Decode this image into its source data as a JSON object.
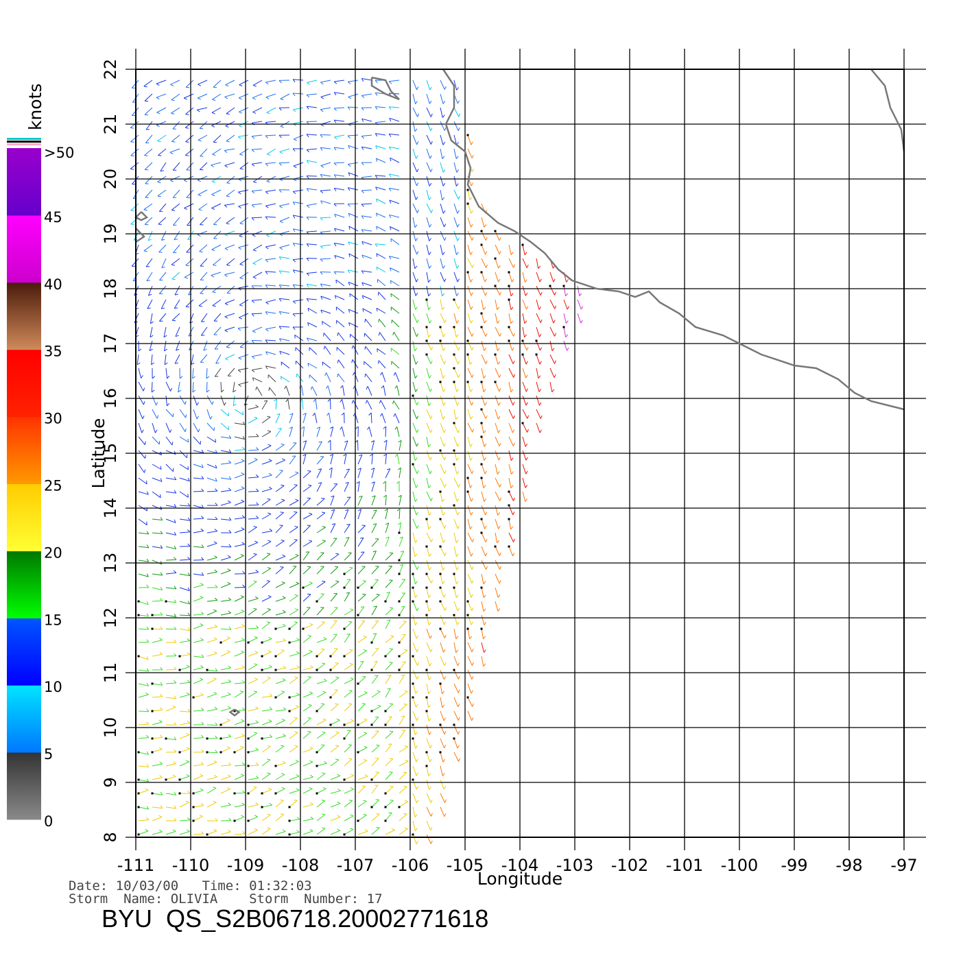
{
  "colorbar": {
    "unit_label": "knots",
    "labels": [
      "0",
      "5",
      "10",
      "15",
      "20",
      "25",
      "30",
      "35",
      "40",
      "45",
      ">50"
    ],
    "segments": [
      {
        "from": 0,
        "to": 5,
        "top_color": "#333333",
        "bottom_color": "#8a8a8a"
      },
      {
        "from": 5,
        "to": 10,
        "top_color": "#00e5ff",
        "bottom_color": "#0077ff"
      },
      {
        "from": 10,
        "to": 15,
        "top_color": "#0055ff",
        "bottom_color": "#0000ff"
      },
      {
        "from": 15,
        "to": 20,
        "top_color": "#007700",
        "bottom_color": "#00ff00"
      },
      {
        "from": 20,
        "to": 25,
        "top_color": "#ffcc00",
        "bottom_color": "#ffff33"
      },
      {
        "from": 25,
        "to": 30,
        "top_color": "#ff3300",
        "bottom_color": "#ff9900"
      },
      {
        "from": 30,
        "to": 35,
        "top_color": "#ff0000",
        "bottom_color": "#ff2200"
      },
      {
        "from": 35,
        "to": 40,
        "top_color": "#4a1a0a",
        "bottom_color": "#d08a5a"
      },
      {
        "from": 40,
        "to": 45,
        "top_color": "#ff00ff",
        "bottom_color": "#cc00cc"
      },
      {
        "from": 45,
        "to": 50,
        "top_color": "#9900cc",
        "bottom_color": "#6600cc"
      }
    ],
    "header_stripes": [
      "#00cccc",
      "#000000",
      "#ffaacc"
    ]
  },
  "map": {
    "lon_range": [
      -111,
      -97
    ],
    "lat_range": [
      8,
      22
    ],
    "lon_ticks": [
      "-111",
      "-110",
      "-109",
      "-108",
      "-107",
      "-106",
      "-105",
      "-104",
      "-103",
      "-102",
      "-101",
      "-100",
      "-99",
      "-98",
      "-97"
    ],
    "lat_ticks": [
      "8",
      "9",
      "10",
      "11",
      "12",
      "13",
      "14",
      "15",
      "16",
      "17",
      "18",
      "19",
      "20",
      "21",
      "22"
    ],
    "xlabel": "Longitude",
    "ylabel": "Latitude",
    "grid": true,
    "coastline_color": "#777777",
    "coastline": [
      [
        -105.4,
        22.0
      ],
      [
        -105.2,
        21.7
      ],
      [
        -105.2,
        21.3
      ],
      [
        -105.35,
        21.0
      ],
      [
        -105.25,
        20.7
      ],
      [
        -105.0,
        20.5
      ],
      [
        -104.9,
        20.2
      ],
      [
        -104.95,
        19.9
      ],
      [
        -104.75,
        19.5
      ],
      [
        -104.4,
        19.2
      ],
      [
        -104.1,
        19.05
      ],
      [
        -103.8,
        18.85
      ],
      [
        -103.55,
        18.65
      ],
      [
        -103.3,
        18.35
      ],
      [
        -103.05,
        18.15
      ],
      [
        -102.6,
        18.0
      ],
      [
        -102.2,
        17.95
      ],
      [
        -101.9,
        17.85
      ],
      [
        -101.65,
        17.95
      ],
      [
        -101.45,
        17.75
      ],
      [
        -101.1,
        17.55
      ],
      [
        -100.8,
        17.3
      ],
      [
        -100.3,
        17.15
      ],
      [
        -99.9,
        16.95
      ],
      [
        -99.6,
        16.8
      ],
      [
        -99.0,
        16.6
      ],
      [
        -98.6,
        16.55
      ],
      [
        -98.2,
        16.35
      ],
      [
        -97.9,
        16.1
      ],
      [
        -97.6,
        15.95
      ],
      [
        -97.0,
        15.8
      ]
    ],
    "coastline_ne": [
      [
        -97.6,
        22.0
      ],
      [
        -97.35,
        21.7
      ],
      [
        -97.25,
        21.3
      ],
      [
        -97.05,
        20.9
      ],
      [
        -97.0,
        20.5
      ]
    ],
    "islands": [
      [
        [
          -106.7,
          21.85
        ],
        [
          -106.45,
          21.8
        ],
        [
          -106.35,
          21.6
        ],
        [
          -106.2,
          21.45
        ],
        [
          -106.45,
          21.55
        ],
        [
          -106.7,
          21.7
        ],
        [
          -106.7,
          21.85
        ]
      ],
      [
        [
          -110.9,
          19.4
        ],
        [
          -110.8,
          19.3
        ],
        [
          -110.9,
          19.25
        ],
        [
          -111.0,
          19.3
        ],
        [
          -110.9,
          19.4
        ]
      ],
      [
        [
          -111.0,
          19.1
        ],
        [
          -110.85,
          18.95
        ],
        [
          -111.0,
          18.85
        ]
      ],
      [
        [
          -109.2,
          10.33
        ],
        [
          -109.12,
          10.28
        ],
        [
          -109.2,
          10.22
        ],
        [
          -109.28,
          10.28
        ],
        [
          -109.2,
          10.33
        ]
      ]
    ]
  },
  "chart_data": {
    "type": "vector-field",
    "title": "BYU QS_S2B06718.20002771618",
    "xlabel": "Longitude",
    "ylabel": "Latitude",
    "xlim": [
      -111,
      -97
    ],
    "ylim": [
      8,
      22
    ],
    "unit": "knots",
    "storm_center": {
      "lon": -108.9,
      "lat": 16.0
    },
    "swath": [
      [
        -111,
        8
      ],
      [
        -105.6,
        8
      ],
      [
        -105,
        10
      ],
      [
        -104.6,
        11.5
      ],
      [
        -104.0,
        14.0
      ],
      [
        -103.6,
        15.9
      ],
      [
        -103.0,
        17.3
      ],
      [
        -102.8,
        18.0
      ],
      [
        -103.2,
        18.4
      ],
      [
        -104.6,
        19.3
      ],
      [
        -105.2,
        22
      ],
      [
        -111,
        22
      ]
    ]
  },
  "footer": {
    "date_line": "Date: 10/03/00   Time: 01:32:03",
    "storm_line": "Storm  Name: OLIVIA    Storm  Number: 17",
    "product": "BYU  QS_S2B06718.20002771618"
  }
}
